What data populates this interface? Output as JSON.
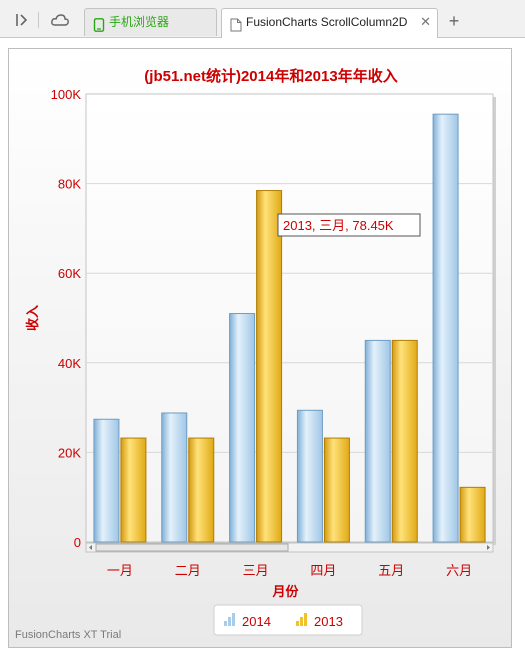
{
  "browser": {
    "tabs": [
      {
        "label": "手机浏览器",
        "active": false,
        "color": "#2aa515"
      },
      {
        "label": "FusionCharts ScrollColumn2D",
        "active": true,
        "close": "✕"
      }
    ],
    "new_tab_icon": "+",
    "icons": [
      "sidebar-toggle-icon",
      "cloud-icon",
      "phone-icon",
      "page-icon"
    ]
  },
  "chart_data": {
    "type": "bar",
    "title": "(jb51.net统计)2014年和2013年年收入",
    "xlabel": "月份",
    "ylabel": "收入",
    "categories": [
      "一月",
      "二月",
      "三月",
      "四月",
      "五月",
      "六月"
    ],
    "series": [
      {
        "name": "2014",
        "values": [
          27400,
          28800,
          51000,
          29400,
          45000,
          95500
        ],
        "color": "#a8cdea"
      },
      {
        "name": "2013",
        "values": [
          23200,
          23200,
          78450,
          23200,
          45000,
          12200
        ],
        "color": "#efc12c"
      }
    ],
    "ylim": [
      0,
      100000
    ],
    "yticks": [
      "0",
      "20K",
      "40K",
      "60K",
      "80K",
      "100K"
    ],
    "tooltip": "2013, 三月, 78.45K",
    "grid": true,
    "legend_placement": "bottom",
    "scrollbar": true,
    "text_color": "#cc0000"
  },
  "watermark": "FusionCharts XT Trial"
}
